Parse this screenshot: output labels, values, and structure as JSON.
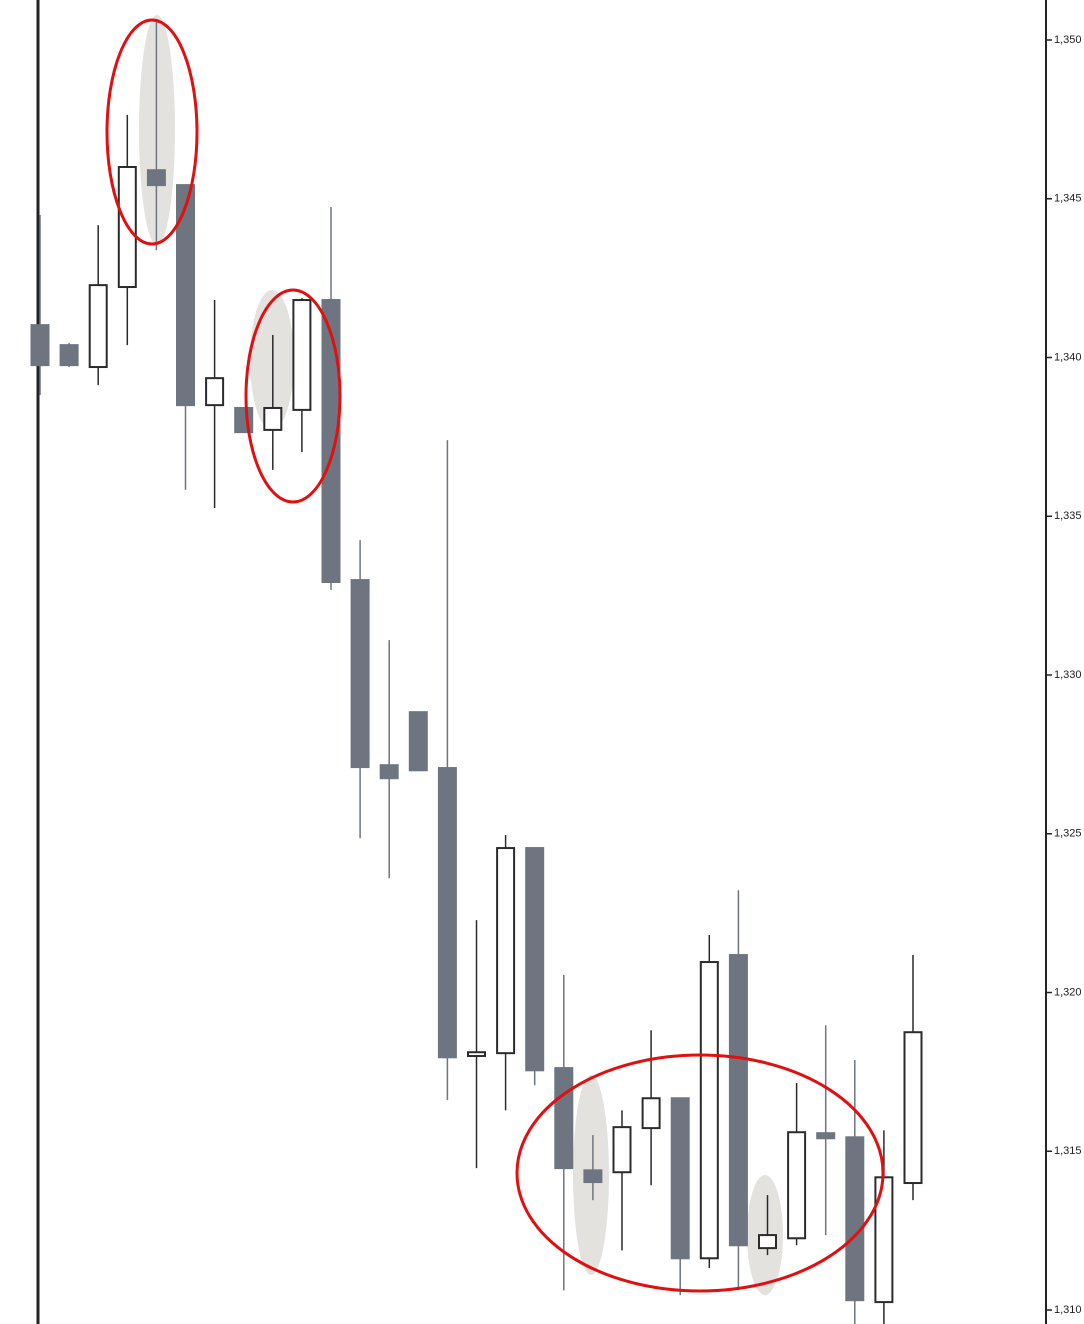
{
  "chart_data": {
    "type": "candlestick",
    "open": [
      1.34102,
      1.34039,
      1.3397,
      1.34222,
      1.3459,
      1.34543,
      1.3385,
      1.33841,
      1.33772,
      1.33835,
      1.34181,
      1.33299,
      1.32716,
      1.32883,
      1.32707,
      1.318,
      1.31809,
      1.32455,
      1.31762,
      1.3144,
      1.31434,
      1.31573,
      1.31667,
      1.31163,
      1.32118,
      1.31195,
      1.31226,
      1.31557,
      1.31544,
      1.31025,
      1.314
    ],
    "high": [
      1.34449,
      1.34046,
      1.34417,
      1.34764,
      1.35063,
      1.34543,
      1.34181,
      1.33841,
      1.34071,
      1.34187,
      1.34474,
      1.33425,
      1.3311,
      1.32883,
      1.3374,
      1.32228,
      1.32496,
      1.32455,
      1.32055,
      1.31551,
      1.31629,
      1.31881,
      1.31667,
      1.32181,
      1.32322,
      1.31362,
      1.31715,
      1.31897,
      1.31787,
      1.31566,
      1.32118
    ],
    "low": [
      1.33882,
      1.3397,
      1.33913,
      1.34039,
      1.34338,
      1.33583,
      1.33526,
      1.33765,
      1.33646,
      1.33702,
      1.33268,
      1.32486,
      1.3236,
      1.327,
      1.31661,
      1.31447,
      1.31629,
      1.31708,
      1.31062,
      1.31346,
      1.31188,
      1.31393,
      1.31047,
      1.31132,
      1.31062,
      1.31173,
      1.31204,
      1.31236,
      1.30956,
      1.30956,
      1.31346
    ],
    "close": [
      1.33976,
      1.33976,
      1.34228,
      1.346,
      1.34543,
      1.3385,
      1.33935,
      1.33765,
      1.33841,
      1.34181,
      1.33293,
      1.3271,
      1.32675,
      1.327,
      1.31796,
      1.31812,
      1.32455,
      1.31755,
      1.31447,
      1.31403,
      1.31576,
      1.31667,
      1.31163,
      1.32096,
      1.31204,
      1.31236,
      1.3156,
      1.31541,
      1.31031,
      1.31418,
      1.31875
    ],
    "up_color": "#ffffff",
    "down_color": "#6e7580",
    "edge_color": "#2b2b2b",
    "ylim": [
      1.30956,
      1.35126
    ],
    "yticks": [
      {
        "value": 1.35,
        "label": "1,350"
      },
      {
        "value": 1.345,
        "label": "1,345"
      },
      {
        "value": 1.34,
        "label": "1,340"
      },
      {
        "value": 1.335,
        "label": "1,335"
      },
      {
        "value": 1.33,
        "label": "1,330"
      },
      {
        "value": 1.325,
        "label": "1,325"
      },
      {
        "value": 1.32,
        "label": "1,320"
      },
      {
        "value": 1.315,
        "label": "1,315"
      },
      {
        "value": 1.31,
        "label": "1,310"
      }
    ]
  }
}
